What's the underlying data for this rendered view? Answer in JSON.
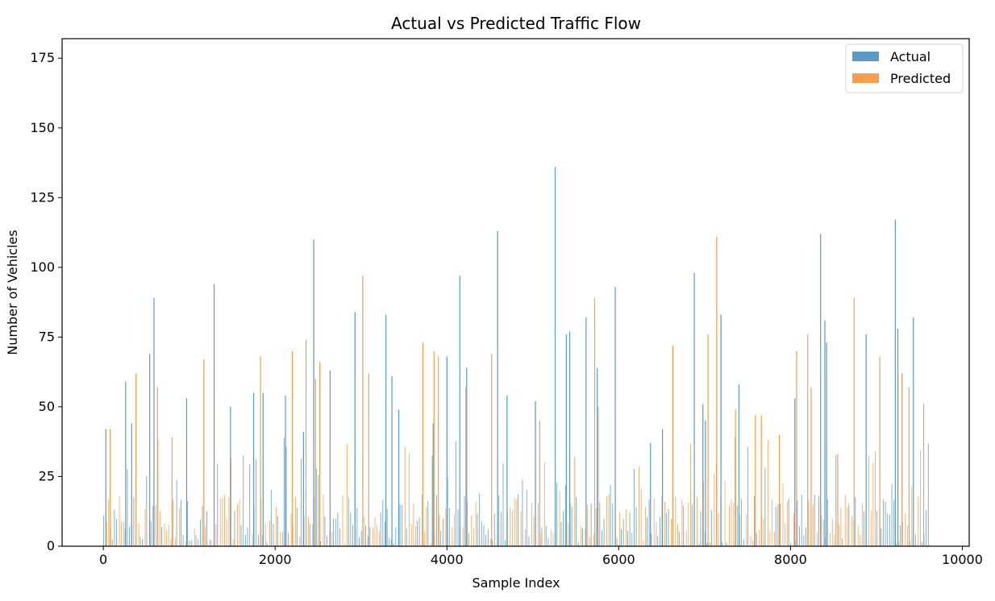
{
  "chart_data": {
    "type": "bar",
    "title": "Actual vs Predicted Traffic Flow",
    "xlabel": "Sample Index",
    "ylabel": "Number of Vehicles",
    "xlim": [
      -480,
      10080
    ],
    "ylim": [
      0,
      182
    ],
    "xticks": [
      0,
      2000,
      4000,
      6000,
      8000,
      10000
    ],
    "yticks": [
      0,
      25,
      50,
      75,
      100,
      125,
      150,
      175
    ],
    "legend": {
      "placement": "top-right"
    },
    "grid": false,
    "colors": {
      "actual": "#5a9bc6",
      "predicted": "#fb9e4b"
    },
    "series": [
      {
        "name": "Actual",
        "x": [
          30,
          330,
          260,
          590,
          540,
          970,
          1290,
          1480,
          1750,
          1860,
          2120,
          2330,
          2450,
          2640,
          2930,
          3290,
          3360,
          3440,
          3840,
          4000,
          4150,
          4230,
          4590,
          4700,
          5030,
          5260,
          5390,
          5430,
          5620,
          5750,
          5960,
          6370,
          6510,
          6880,
          6980,
          7010,
          7190,
          7400,
          8050,
          8350,
          8400,
          8420,
          8880,
          9220,
          9250,
          9300,
          9430
        ],
        "values": [
          42,
          44,
          59,
          89,
          69,
          53,
          94,
          50,
          55,
          55,
          54,
          41,
          110,
          63,
          84,
          83,
          61,
          49,
          44,
          68,
          97,
          64,
          113,
          54,
          52,
          136,
          76,
          77,
          82,
          64,
          93,
          37,
          42,
          98,
          51,
          45,
          83,
          58,
          53,
          112,
          81,
          73,
          76,
          117,
          78,
          62,
          82
        ]
      },
      {
        "name": "Predicted",
        "x": [
          80,
          380,
          630,
          800,
          1170,
          1830,
          2200,
          2360,
          2470,
          2520,
          3020,
          3090,
          3720,
          3850,
          3900,
          4220,
          4520,
          5080,
          5720,
          5760,
          6630,
          7040,
          7140,
          7360,
          7590,
          7660,
          7870,
          8070,
          8200,
          8240,
          8550,
          8740,
          9040,
          9300,
          9380,
          9550
        ],
        "values": [
          42,
          62,
          57,
          39,
          67,
          68,
          70,
          74,
          60,
          66,
          97,
          62,
          73,
          70,
          68,
          57,
          69,
          45,
          89,
          50,
          72,
          76,
          111,
          49,
          47,
          47,
          40,
          70,
          76,
          57,
          33,
          89,
          68,
          62,
          57,
          51
        ]
      }
    ]
  }
}
